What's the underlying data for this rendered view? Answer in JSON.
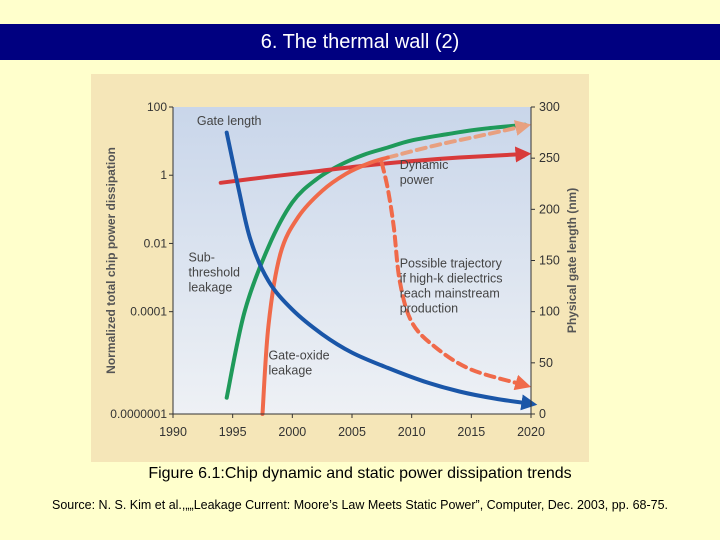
{
  "slide": {
    "title": "6. The thermal wall (2)",
    "caption": "Figure 6.1:Chip dynamic and static power dissipation trends",
    "source": "Source: N. S. Kim et al.,„„Leakage Current: Moore’s Law Meets Static Power”, Computer, Dec. 2003, pp. 68-75."
  },
  "colors": {
    "panel_bg": "#f5e6b8",
    "plot_bg_top": "#c9d6ea",
    "plot_bg_bottom": "#eef1f5",
    "gate_length": "#1a56a8",
    "dynamic_power": "#d83a3a",
    "subthreshold": "#1f9a5a",
    "gate_oxide": "#f06a4a",
    "high_k": "#f06a4a",
    "extrapolation": "#e8a080"
  },
  "chart_data": {
    "type": "line",
    "x": [
      1990,
      1995,
      2000,
      2005,
      2010,
      2015,
      2020
    ],
    "xlim": [
      1990,
      2020
    ],
    "y_left": {
      "label": "Normalized total chip power dissipation",
      "scale": "log",
      "ylim": [
        1e-07,
        100
      ],
      "ticks": [
        "100",
        "1",
        "0.01",
        "0.0001",
        "0.0000001"
      ],
      "tick_values": [
        100,
        1,
        0.01,
        0.0001,
        1e-07
      ]
    },
    "y_right": {
      "label": "Physical gate length (nm)",
      "ylim": [
        0,
        300
      ],
      "ticks": [
        "300",
        "250",
        "200",
        "150",
        "100",
        "50",
        "0"
      ],
      "tick_values": [
        300,
        250,
        200,
        150,
        100,
        50,
        0
      ]
    },
    "grid": false,
    "series": [
      {
        "name": "Gate length",
        "axis": "right",
        "color_key": "gate_length",
        "arrow": true,
        "points": [
          [
            1994.5,
            275
          ],
          [
            1995.5,
            220
          ],
          [
            1996.5,
            170
          ],
          [
            1998,
            130
          ],
          [
            2000,
            102
          ],
          [
            2002.5,
            78
          ],
          [
            2005,
            60
          ],
          [
            2008,
            45
          ],
          [
            2011,
            32
          ],
          [
            2014,
            22
          ],
          [
            2017,
            15
          ],
          [
            2020,
            10
          ]
        ]
      },
      {
        "name": "Dynamic power",
        "axis": "left",
        "color_key": "dynamic_power",
        "arrow": true,
        "points": [
          [
            1994,
            0.6
          ],
          [
            1998,
            0.9
          ],
          [
            2002,
            1.3
          ],
          [
            2006,
            1.9
          ],
          [
            2010,
            2.6
          ],
          [
            2014,
            3.3
          ],
          [
            2019.5,
            4.2
          ]
        ]
      },
      {
        "name": "Sub-threshold leakage",
        "axis": "left",
        "color_key": "subthreshold",
        "arrow": false,
        "points": [
          [
            1994.5,
            3e-07
          ],
          [
            1996,
            0.0001
          ],
          [
            1998,
            0.008
          ],
          [
            2000,
            0.16
          ],
          [
            2002,
            0.75
          ],
          [
            2004,
            2
          ],
          [
            2006,
            4
          ],
          [
            2008,
            6.5
          ],
          [
            2010,
            10.5
          ],
          [
            2013,
            16
          ],
          [
            2016,
            23
          ],
          [
            2019.5,
            30
          ]
        ]
      },
      {
        "name": "Gate-oxide leakage",
        "axis": "left",
        "color_key": "gate_oxide",
        "arrow": false,
        "points": [
          [
            1997.5,
            1e-07
          ],
          [
            1998,
            4e-05
          ],
          [
            1999,
            0.005
          ],
          [
            2000.5,
            0.06
          ],
          [
            2002.5,
            0.35
          ],
          [
            2004.5,
            1.1
          ],
          [
            2006.5,
            2.3
          ],
          [
            2008,
            3.3
          ]
        ]
      },
      {
        "name": "Gate-oxide leakage extrapolation",
        "axis": "left",
        "color_key": "extrapolation",
        "dashed": true,
        "arrow": true,
        "points": [
          [
            2008,
            3.3
          ],
          [
            2012,
            7.5
          ],
          [
            2016,
            15
          ],
          [
            2019.5,
            28
          ]
        ]
      },
      {
        "name": "Possible trajectory if high-k dielectrics reach mainstream production",
        "axis": "left",
        "color_key": "high_k",
        "dashed": true,
        "arrow": true,
        "points": [
          [
            2007.5,
            2.3
          ],
          [
            2008,
            0.4
          ],
          [
            2008.5,
            0.03
          ],
          [
            2009,
            0.0008
          ],
          [
            2010,
            5e-05
          ],
          [
            2012,
            9e-06
          ],
          [
            2015,
            2e-06
          ],
          [
            2019.5,
            7e-07
          ]
        ]
      }
    ],
    "annotations": [
      {
        "text": "Gate length",
        "x": 1992,
        "y": 30,
        "lines": [
          "Gate length"
        ]
      },
      {
        "text": "Dynamic power",
        "x": 2009,
        "y": 1.5,
        "lines": [
          "Dynamic",
          "power"
        ]
      },
      {
        "text": "Possible trajectory if high-k dielectrics reach mainstream production",
        "x": 2009,
        "y": 0.002,
        "lines": [
          "Possible trajectory",
          "if high-k dielectrics",
          "reach mainstream",
          "production"
        ]
      },
      {
        "text": "Sub-threshold leakage",
        "x": 1991.3,
        "y": 0.003,
        "lines": [
          "Sub-",
          "threshold",
          "leakage"
        ]
      },
      {
        "text": "Gate-oxide leakage",
        "x": 1998,
        "y": 4e-06,
        "lines": [
          "Gate-oxide",
          "leakage"
        ]
      }
    ]
  }
}
